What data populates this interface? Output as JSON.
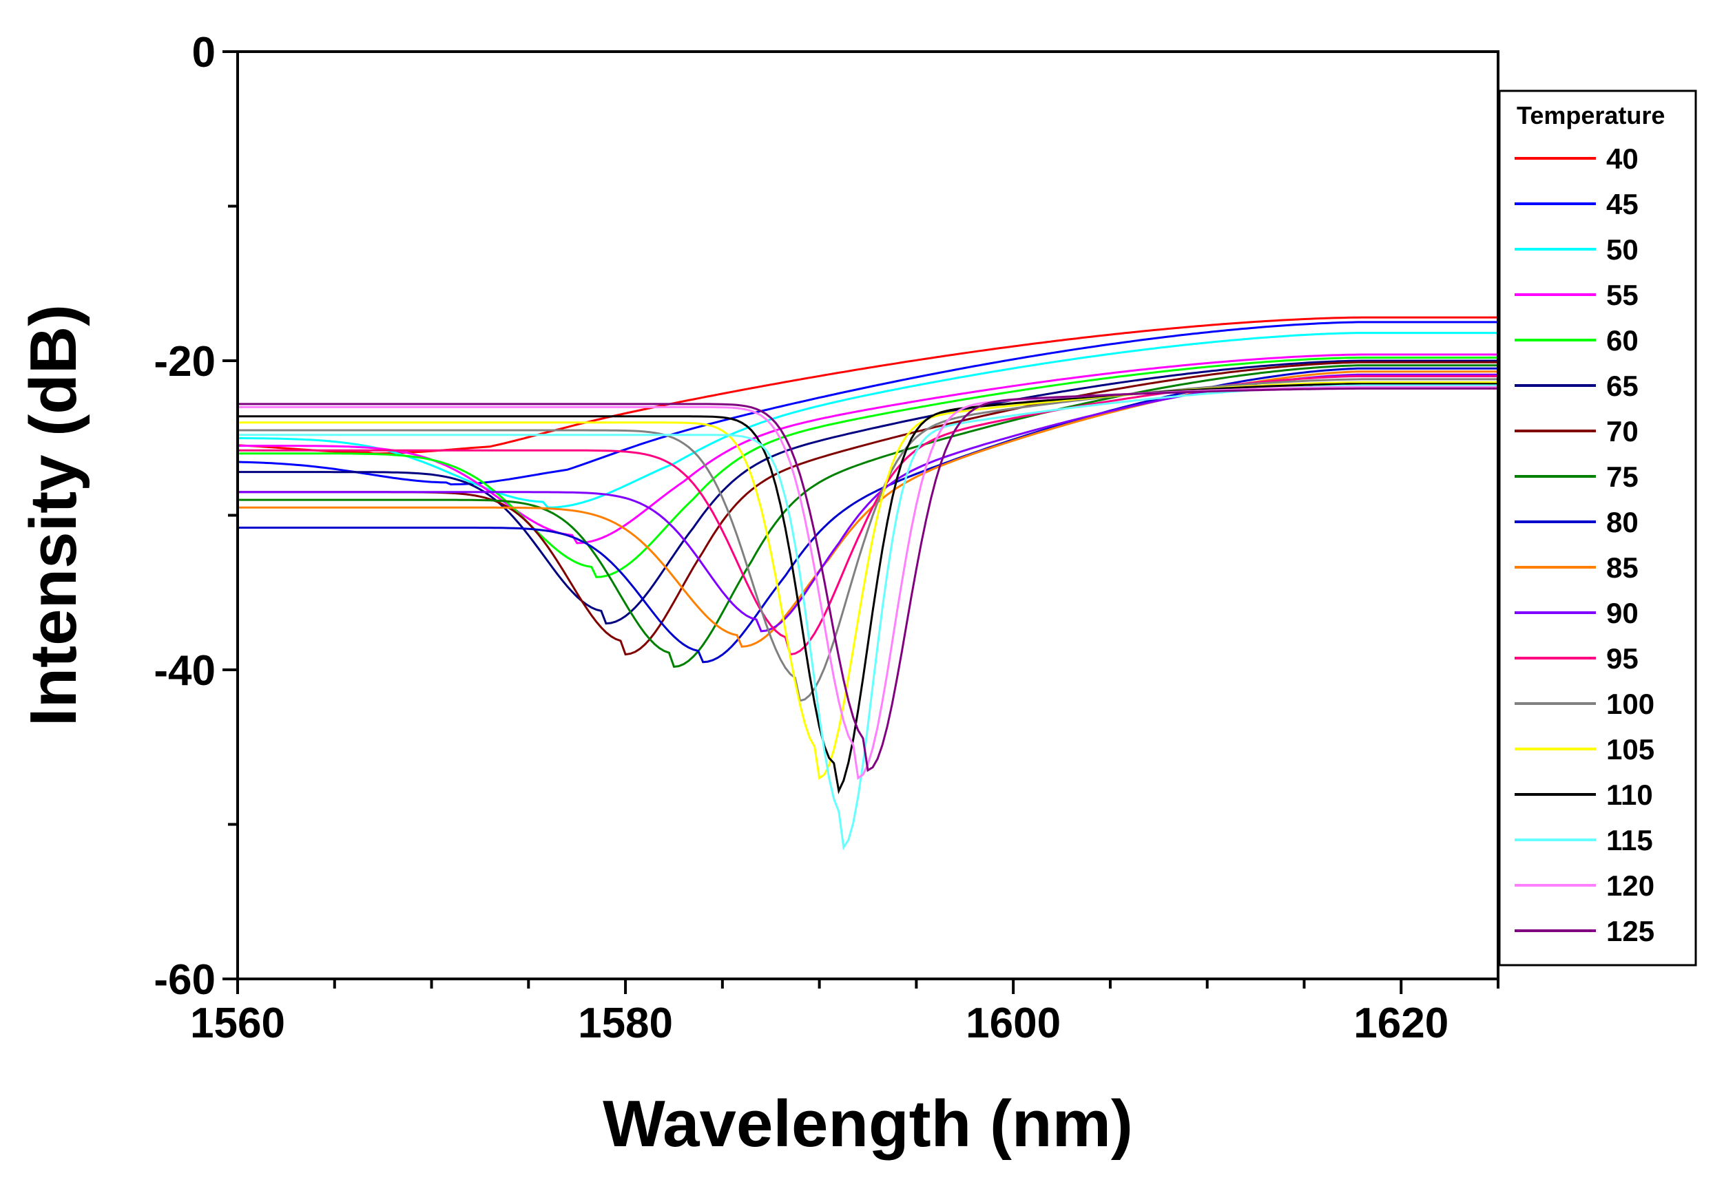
{
  "chart_data": {
    "type": "line",
    "title": "",
    "xlabel": "Wavelength (nm)",
    "ylabel": "Intensity (dB)",
    "xlim": [
      1560,
      1625
    ],
    "ylim": [
      -60,
      0
    ],
    "xticks": [
      1560,
      1580,
      1600,
      1620
    ],
    "yticks": [
      0,
      -20,
      -40,
      -60
    ],
    "x_tick_labels": [
      "1560",
      "1580",
      "1600",
      "1620"
    ],
    "y_tick_labels": [
      "0",
      "-20",
      "-40",
      "-60"
    ],
    "legend_title": "Temperature",
    "legend_position": "right",
    "series": [
      {
        "name": "40",
        "color": "#ff0000",
        "base": -25.3,
        "dip_x": 1567.0,
        "dip_y": -26.0,
        "dip_w": 6.0,
        "end_y": -17.2
      },
      {
        "name": "45",
        "color": "#0000ff",
        "base": -26.5,
        "dip_x": 1571.0,
        "dip_y": -28.0,
        "dip_w": 6.0,
        "end_y": -17.5
      },
      {
        "name": "50",
        "color": "#00ffff",
        "base": -25.0,
        "dip_x": 1576.0,
        "dip_y": -29.5,
        "dip_w": 6.5,
        "end_y": -18.2
      },
      {
        "name": "55",
        "color": "#ff00ff",
        "base": -25.5,
        "dip_x": 1577.5,
        "dip_y": -31.8,
        "dip_w": 5.5,
        "end_y": -19.6
      },
      {
        "name": "60",
        "color": "#00ff00",
        "base": -26.0,
        "dip_x": 1578.5,
        "dip_y": -34.0,
        "dip_w": 5.0,
        "end_y": -19.8
      },
      {
        "name": "65",
        "color": "#000080",
        "base": -27.2,
        "dip_x": 1579.0,
        "dip_y": -37.0,
        "dip_w": 4.5,
        "end_y": -20.0
      },
      {
        "name": "70",
        "color": "#800000",
        "base": -28.5,
        "dip_x": 1580.0,
        "dip_y": -39.0,
        "dip_w": 4.0,
        "end_y": -20.1
      },
      {
        "name": "75",
        "color": "#008000",
        "base": -29.0,
        "dip_x": 1582.5,
        "dip_y": -39.8,
        "dip_w": 4.0,
        "end_y": -20.3
      },
      {
        "name": "80",
        "color": "#0000cd",
        "base": -30.8,
        "dip_x": 1584.0,
        "dip_y": -39.5,
        "dip_w": 4.2,
        "end_y": -20.5
      },
      {
        "name": "85",
        "color": "#ff8000",
        "base": -29.5,
        "dip_x": 1586.0,
        "dip_y": -38.5,
        "dip_w": 4.5,
        "end_y": -20.7
      },
      {
        "name": "90",
        "color": "#8000ff",
        "base": -28.5,
        "dip_x": 1587.0,
        "dip_y": -37.5,
        "dip_w": 4.0,
        "end_y": -20.9
      },
      {
        "name": "95",
        "color": "#ff0080",
        "base": -25.8,
        "dip_x": 1588.5,
        "dip_y": -39.0,
        "dip_w": 3.8,
        "end_y": -21.0
      },
      {
        "name": "100",
        "color": "#808080",
        "base": -24.5,
        "dip_x": 1589.0,
        "dip_y": -42.0,
        "dip_w": 3.5,
        "end_y": -21.2
      },
      {
        "name": "105",
        "color": "#ffff00",
        "base": -24.0,
        "dip_x": 1590.0,
        "dip_y": -47.0,
        "dip_w": 2.6,
        "end_y": -21.4
      },
      {
        "name": "110",
        "color": "#000000",
        "base": -23.6,
        "dip_x": 1590.8,
        "dip_y": -48.0,
        "dip_w": 2.4,
        "end_y": -21.5
      },
      {
        "name": "115",
        "color": "#66ffff",
        "base": -24.8,
        "dip_x": 1591.2,
        "dip_y": -51.5,
        "dip_w": 2.2,
        "end_y": -21.6
      },
      {
        "name": "120",
        "color": "#ff80ff",
        "base": -23.0,
        "dip_x": 1592.0,
        "dip_y": -47.0,
        "dip_w": 2.6,
        "end_y": -21.7
      },
      {
        "name": "125",
        "color": "#800080",
        "base": -22.8,
        "dip_x": 1592.5,
        "dip_y": -46.5,
        "dip_w": 2.8,
        "end_y": -21.8
      }
    ]
  }
}
